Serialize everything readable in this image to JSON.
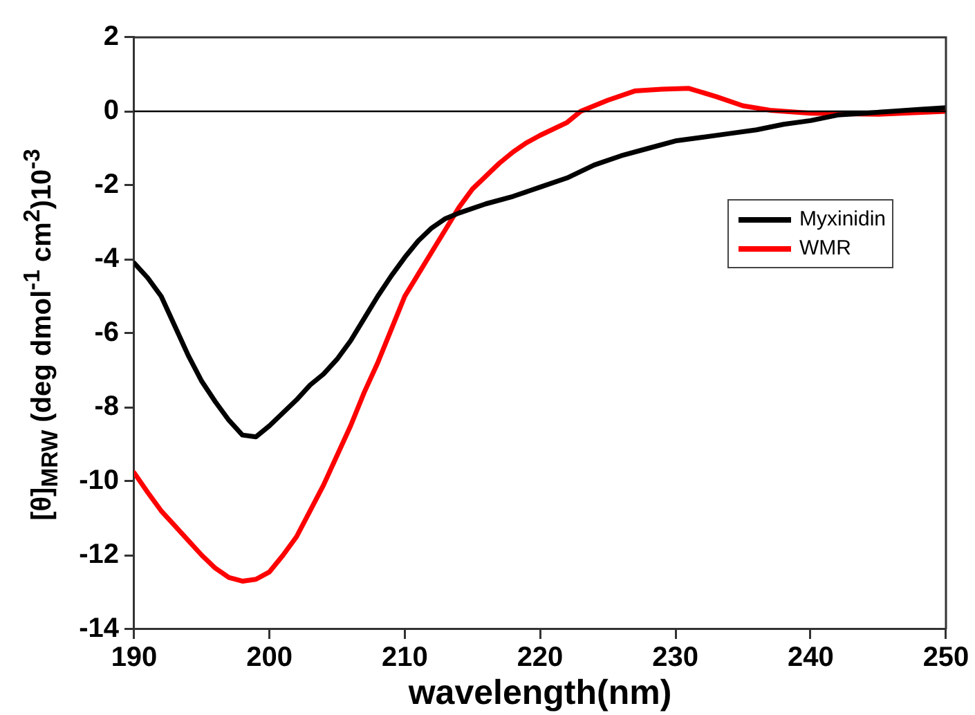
{
  "chart_data": {
    "type": "line",
    "xlabel": "wavelength(nm)",
    "ylabel": "[θ]$_{MRW}$ (deg dmol$^{-1}$ cm$^{2}$)10$^{-3}$",
    "xlim": [
      190,
      250
    ],
    "xticks": [
      190,
      200,
      210,
      220,
      230,
      240,
      250
    ],
    "ylim": [
      -14,
      2
    ],
    "yticks": [
      -14,
      -12,
      -10,
      -8,
      -6,
      -4,
      -2,
      0,
      2
    ],
    "legend": "right",
    "marker": "none",
    "line_style": "solid",
    "ref_lines": [
      {
        "axis": "y",
        "value": 0,
        "color": "#000000"
      }
    ],
    "series": [
      {
        "name": "Myxinidin",
        "color": "#000000",
        "x": [
          190,
          191,
          192,
          193,
          194,
          195,
          196,
          197,
          198,
          199,
          200,
          201,
          202,
          203,
          204,
          205,
          206,
          207,
          208,
          209,
          210,
          211,
          212,
          213,
          214,
          216,
          218,
          220,
          222,
          224,
          226,
          228,
          230,
          232,
          234,
          236,
          238,
          240,
          242,
          244,
          246,
          248,
          250
        ],
        "values": [
          -4.1,
          -4.5,
          -5.0,
          -5.8,
          -6.6,
          -7.3,
          -7.85,
          -8.35,
          -8.75,
          -8.8,
          -8.5,
          -8.15,
          -7.8,
          -7.4,
          -7.1,
          -6.7,
          -6.2,
          -5.6,
          -5.0,
          -4.45,
          -3.95,
          -3.5,
          -3.15,
          -2.9,
          -2.75,
          -2.5,
          -2.3,
          -2.05,
          -1.8,
          -1.45,
          -1.2,
          -1.0,
          -0.8,
          -0.7,
          -0.6,
          -0.5,
          -0.35,
          -0.25,
          -0.1,
          -0.05,
          0,
          0.05,
          0.1
        ]
      },
      {
        "name": "WMR",
        "color": "#ff0000",
        "x": [
          190,
          191,
          192,
          193,
          194,
          195,
          196,
          197,
          198,
          199,
          200,
          201,
          202,
          203,
          204,
          205,
          206,
          207,
          208,
          209,
          210,
          211,
          212,
          213,
          214,
          215,
          216,
          217,
          218,
          219,
          220,
          222,
          223,
          225,
          227,
          229,
          231,
          233,
          235,
          237,
          240,
          245,
          250
        ],
        "values": [
          -9.77,
          -10.3,
          -10.8,
          -11.2,
          -11.6,
          -12.0,
          -12.35,
          -12.6,
          -12.7,
          -12.65,
          -12.45,
          -12.0,
          -11.5,
          -10.8,
          -10.1,
          -9.3,
          -8.5,
          -7.6,
          -6.8,
          -5.9,
          -5.0,
          -4.4,
          -3.8,
          -3.2,
          -2.6,
          -2.1,
          -1.75,
          -1.4,
          -1.1,
          -0.85,
          -0.65,
          -0.3,
          0,
          0.3,
          0.55,
          0.6,
          0.62,
          0.4,
          0.15,
          0.03,
          -0.05,
          -0.08,
          0
        ]
      }
    ]
  }
}
